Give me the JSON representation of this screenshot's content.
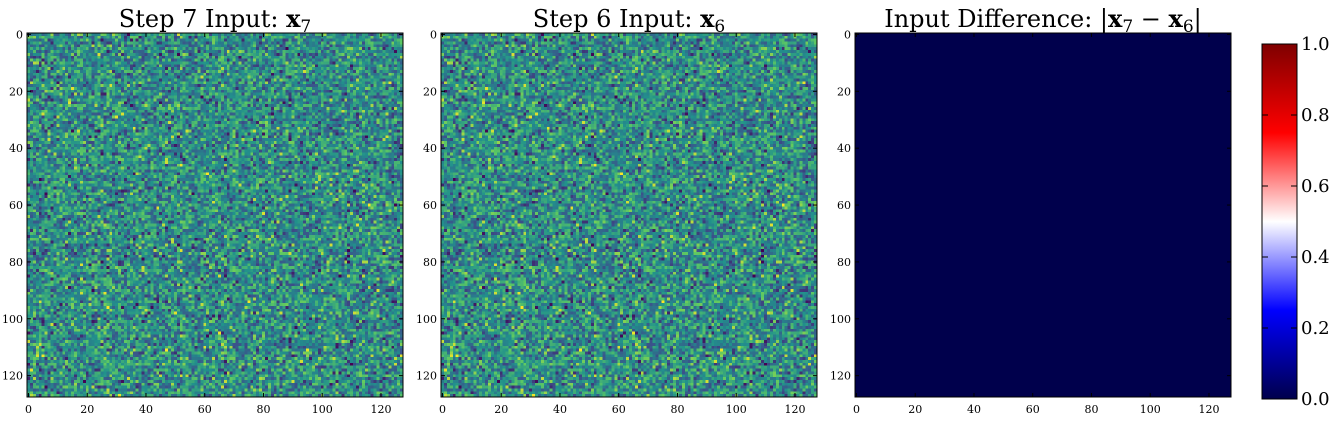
{
  "chart_data": [
    {
      "type": "heatmap",
      "title": {
        "prefix": "Step 7 Input: ",
        "var": "x",
        "sub": "7"
      },
      "colormap": "viridis",
      "pattern": "noise",
      "seed": 7,
      "x": {
        "ticks": [
          "0",
          "20",
          "40",
          "60",
          "80",
          "100",
          "120"
        ],
        "range": [
          0,
          128
        ]
      },
      "y": {
        "ticks": [
          "0",
          "20",
          "40",
          "60",
          "80",
          "100",
          "120"
        ],
        "range": [
          0,
          128
        ]
      },
      "grid": false
    },
    {
      "type": "heatmap",
      "title": {
        "prefix": "Step 6 Input: ",
        "var": "x",
        "sub": "6"
      },
      "colormap": "viridis",
      "pattern": "noise",
      "seed": 7,
      "x": {
        "ticks": [
          "0",
          "20",
          "40",
          "60",
          "80",
          "100",
          "120"
        ],
        "range": [
          0,
          128
        ]
      },
      "y": {
        "ticks": [
          "0",
          "20",
          "40",
          "60",
          "80",
          "100",
          "120"
        ],
        "range": [
          0,
          128
        ]
      },
      "grid": false
    },
    {
      "type": "heatmap",
      "title": {
        "prefix": "Input Difference: |",
        "var": "x",
        "sub": "7",
        "op": " − ",
        "var2": "x",
        "sub2": "6",
        "suffix": "|"
      },
      "colormap": "seismic",
      "pattern": "constant",
      "value": 0.0,
      "x": {
        "ticks": [
          "0",
          "20",
          "40",
          "60",
          "80",
          "100",
          "120"
        ],
        "range": [
          0,
          128
        ]
      },
      "y": {
        "ticks": [
          "0",
          "20",
          "40",
          "60",
          "80",
          "100",
          "120"
        ],
        "range": [
          0,
          128
        ]
      },
      "grid": false
    }
  ],
  "colorbar": {
    "colormap": "seismic",
    "range": [
      0.0,
      1.0
    ],
    "ticks": [
      "0.0",
      "0.2",
      "0.4",
      "0.6",
      "0.8",
      "1.0"
    ],
    "tick_values": [
      0.0,
      0.2,
      0.4,
      0.6,
      0.8,
      1.0
    ]
  },
  "colors": {
    "seismic": [
      "#00004c",
      "#0000ff",
      "#ffffff",
      "#ff0000",
      "#7f0000"
    ],
    "viridis": [
      "#440154",
      "#3b528b",
      "#21918c",
      "#5ec962",
      "#fde725"
    ]
  }
}
